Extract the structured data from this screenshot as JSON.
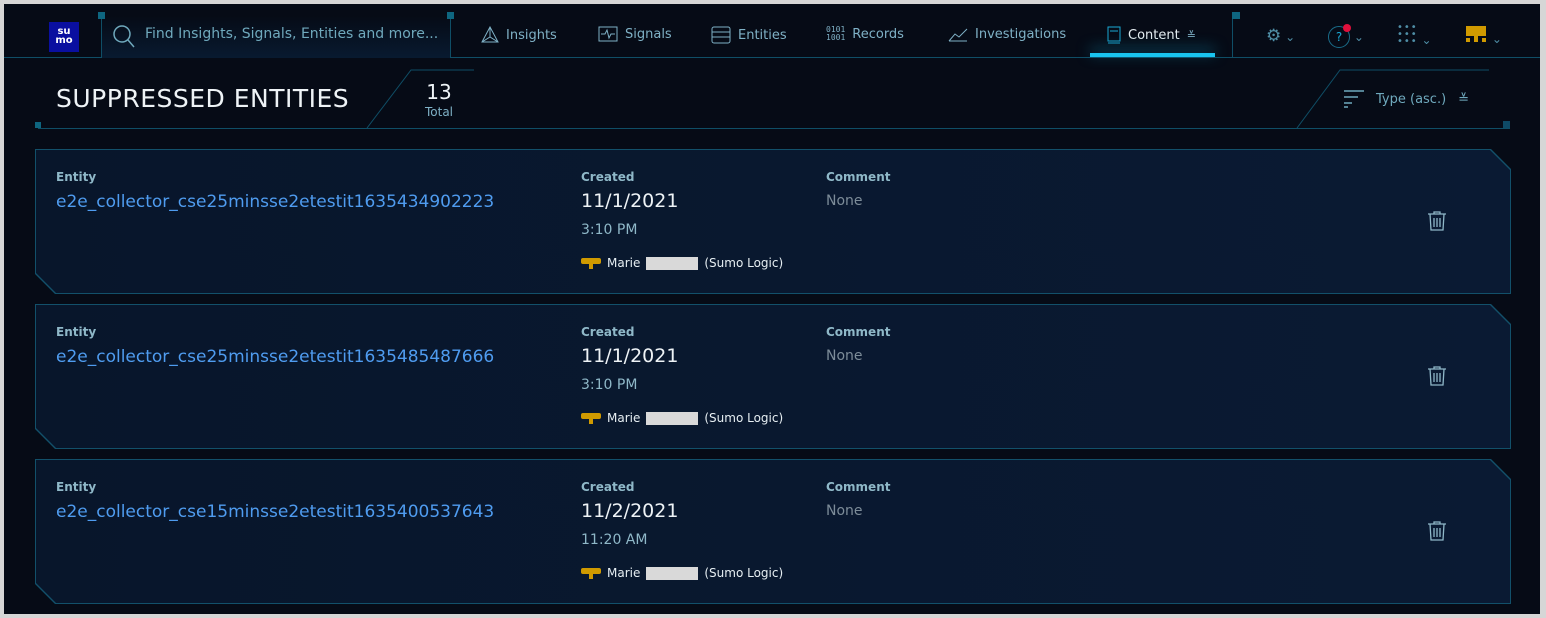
{
  "nav": {
    "logo": "su mo",
    "search_placeholder": "Find Insights, Signals, Entities and more...",
    "items": [
      {
        "label": "Insights",
        "icon": "triangle-icon"
      },
      {
        "label": "Signals",
        "icon": "pulse-icon"
      },
      {
        "label": "Entities",
        "icon": "server-icon"
      },
      {
        "label": "Records",
        "icon": "binary-icon"
      },
      {
        "label": "Investigations",
        "icon": "chart-icon"
      },
      {
        "label": "Content",
        "icon": "book-icon",
        "active": true
      }
    ],
    "notification_color": "#e0103c"
  },
  "header": {
    "title": "SUPPRESSED ENTITIES",
    "count": "13",
    "count_label": "Total",
    "sort_label": "Type (asc.)"
  },
  "labels": {
    "entity": "Entity",
    "created": "Created",
    "comment": "Comment"
  },
  "rows": [
    {
      "entity": "e2e_collector_cse25minsse2etestit1635434902223",
      "date": "11/1/2021",
      "time": "3:10 PM",
      "user_first": "Marie",
      "user_org": "(Sumo Logic)",
      "comment": "None"
    },
    {
      "entity": "e2e_collector_cse25minsse2etestit1635485487666",
      "date": "11/1/2021",
      "time": "3:10 PM",
      "user_first": "Marie",
      "user_org": "(Sumo Logic)",
      "comment": "None"
    },
    {
      "entity": "e2e_collector_cse15minsse2etestit1635400537643",
      "date": "11/2/2021",
      "time": "11:20 AM",
      "user_first": "Marie",
      "user_org": "(Sumo Logic)",
      "comment": "None"
    }
  ]
}
